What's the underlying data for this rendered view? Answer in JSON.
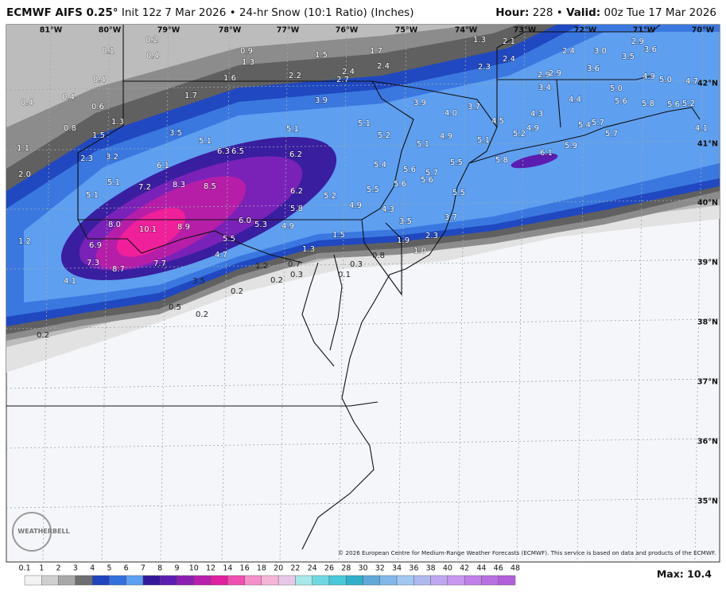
{
  "header": {
    "model": "ECMWF AIFS 0.25°",
    "description": "Init 12z 7 Mar 2026 • 24-hr Snow (10:1 Ratio) (Inches)",
    "hour_label": "Hour:",
    "hour": "228 •",
    "valid_label": "Valid:",
    "valid": "00z Tue 17 Mar 2026"
  },
  "map": {
    "lon_labels": [
      "81°W",
      "80°W",
      "79°W",
      "78°W",
      "77°W",
      "76°W",
      "75°W",
      "74°W",
      "73°W",
      "72°W",
      "71°W",
      "70°W"
    ],
    "lat_labels": [
      "42°N",
      "41°N",
      "40°N",
      "39°N",
      "38°N",
      "37°N",
      "36°N",
      "35°N"
    ],
    "point_values": [
      "0.2",
      "0.1",
      "0.4",
      "0.9",
      "1.3",
      "1.5",
      "1.7",
      "1.3",
      "2.1",
      "2.4",
      "2.4",
      "3.0",
      "2.9",
      "3.6",
      "3.5",
      "2.4",
      "2.3",
      "2.2",
      "2.4",
      "2.7",
      "1.6",
      "0.4",
      "2.9",
      "2.9",
      "3.6",
      "4.9",
      "5.0",
      "4.7",
      "3.4",
      "5.0",
      "0.4",
      "0.4",
      "0.6",
      "1.7",
      "3.9",
      "3.9",
      "4.0",
      "3.7",
      "4.4",
      "5.6",
      "5.8",
      "5.6",
      "5.2",
      "1.3",
      "0.8",
      "4.3",
      "4.5",
      "5.4",
      "5.7",
      "4.9",
      "5.2",
      "5.7",
      "4.1",
      "1.5",
      "3.5",
      "5.1",
      "5.1",
      "5.2",
      "4.9",
      "5.1",
      "5.1",
      "5.9",
      "1.1",
      "5.1",
      "6.3",
      "6.5",
      "6.2",
      "2.3",
      "3.2",
      "6.1",
      "5.8",
      "5.5",
      "6.1",
      "5.4",
      "5.6",
      "5.7",
      "2.0",
      "5.1",
      "7.2",
      "8.3",
      "8.5",
      "5.6",
      "5.6",
      "6.2",
      "5.5",
      "5.5",
      "5.1",
      "5.2",
      "4.9",
      "5.8",
      "4.3",
      "3.7",
      "8.0",
      "10.1",
      "8.9",
      "6.0",
      "5.3",
      "4.9",
      "3.5",
      "2.3",
      "1.9",
      "1.5",
      "5.5",
      "1.2",
      "6.9",
      "1.0",
      "4.7",
      "0.8",
      "1.2",
      "1.3",
      "0.7",
      "0.3",
      "7.3",
      "8.7",
      "7.7",
      "0.3",
      "0.1",
      "0.2",
      "4.1",
      "3.5",
      "0.2",
      "0.5",
      "0.2",
      "0.2"
    ],
    "logo": "WEATHERBELL",
    "copyright": "© 2026 European Centre for Medium-Range Weather Forecasts (ECMWF). This service is based on data and products of the ECMWF."
  },
  "scale": {
    "labels": [
      "0.1",
      "1",
      "2",
      "3",
      "4",
      "5",
      "6",
      "7",
      "8",
      "9",
      "10",
      "12",
      "14",
      "16",
      "18",
      "20",
      "22",
      "24",
      "26",
      "28",
      "30",
      "32",
      "34",
      "36",
      "38",
      "40",
      "42",
      "44",
      "46",
      "48"
    ]
  },
  "max_label": "Max: 10.4"
}
